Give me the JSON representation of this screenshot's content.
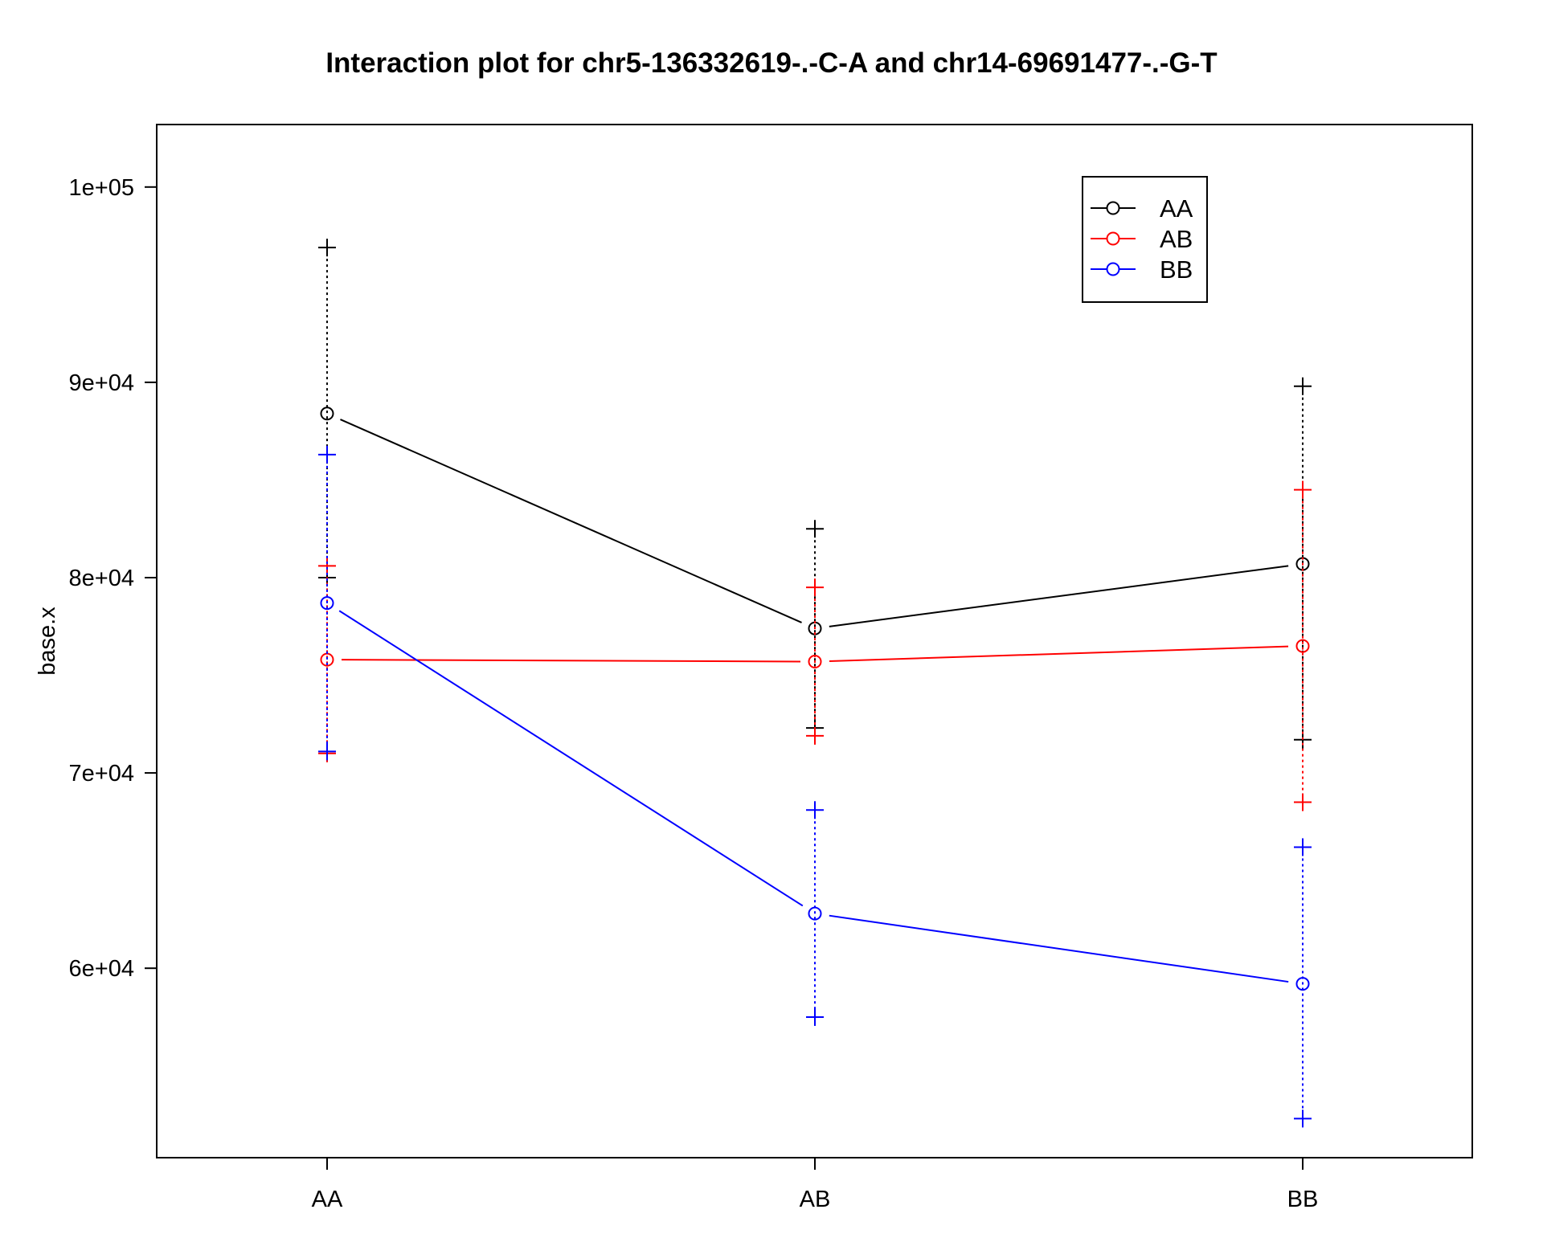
{
  "chart_data": {
    "type": "line",
    "title": "Interaction plot for chr5-136332619-.-C-A and chr14-69691477-.-G-T",
    "xlabel": "",
    "ylabel": "base.x",
    "categories": [
      "AA",
      "AB",
      "BB"
    ],
    "ylim": [
      50300,
      103200
    ],
    "yticks": [
      {
        "value": 60000,
        "label": "6e+04"
      },
      {
        "value": 70000,
        "label": "7e+04"
      },
      {
        "value": 80000,
        "label": "8e+04"
      },
      {
        "value": 90000,
        "label": "9e+04"
      },
      {
        "value": 100000,
        "label": "1e+05"
      }
    ],
    "grid": false,
    "legend": {
      "position": "top-right"
    },
    "series": [
      {
        "name": "AA",
        "color": "#000000",
        "values": [
          88400,
          77400,
          80700
        ],
        "upper": [
          96900,
          82500,
          89800
        ],
        "lower": [
          80000,
          72300,
          71700
        ]
      },
      {
        "name": "AB",
        "color": "#ff0000",
        "values": [
          75800,
          75700,
          76500
        ],
        "upper": [
          80600,
          79500,
          84500
        ],
        "lower": [
          71000,
          71900,
          68500
        ]
      },
      {
        "name": "BB",
        "color": "#0000ff",
        "values": [
          78700,
          62800,
          59200
        ],
        "upper": [
          86300,
          68100,
          66200
        ],
        "lower": [
          71100,
          57500,
          52300
        ]
      }
    ]
  }
}
